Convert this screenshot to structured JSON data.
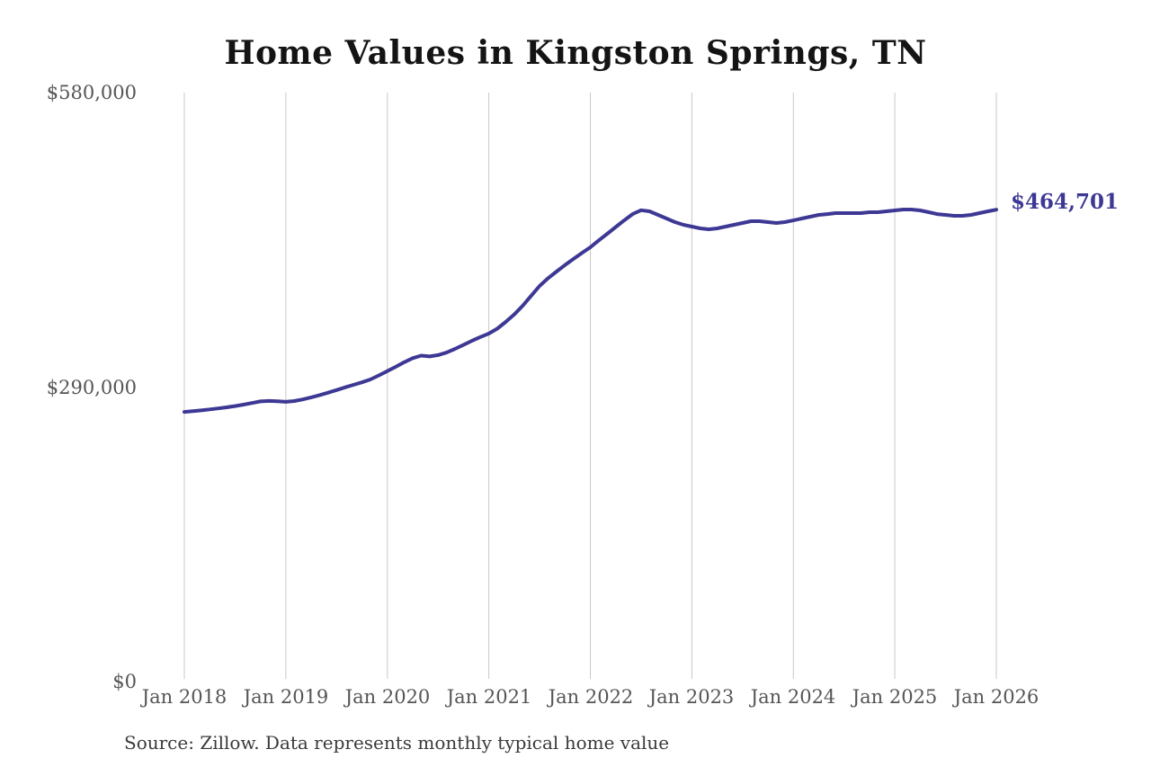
{
  "title": "Home Values in Kingston Springs, TN",
  "source_note": "Source: Zillow. Data represents monthly typical home value",
  "colors": {
    "line": "#3d3894",
    "grid": "#c9c9c9",
    "axis_text": "#555555",
    "title_text": "#141414",
    "source_text": "#3a3a3a",
    "end_label_text": "#3d3894",
    "background": "#ffffff"
  },
  "chart_data": {
    "type": "line",
    "title": "Home Values in Kingston Springs, TN",
    "xlabel": "",
    "ylabel": "",
    "frequency": "monthly",
    "x_start": "Jan 2018",
    "x_end": "Jan 2026",
    "x_tick_labels": [
      "Jan 2018",
      "Jan 2019",
      "Jan 2020",
      "Jan 2021",
      "Jan 2022",
      "Jan 2023",
      "Jan 2024",
      "Jan 2025",
      "Jan 2026"
    ],
    "months_per_tick": 12,
    "y_ticks": [
      0,
      290000,
      580000
    ],
    "y_tick_labels": [
      "$0",
      "$290,000",
      "$580,000"
    ],
    "ylim": [
      0,
      580000
    ],
    "grid": "vertical-only",
    "legend": "none",
    "end_label": "$464,701",
    "last_value": 464701,
    "series": [
      {
        "name": "Monthly typical home value",
        "values": [
          265600,
          266300,
          267100,
          268000,
          269000,
          270100,
          271300,
          272700,
          274300,
          275900,
          276400,
          276000,
          275500,
          276300,
          277900,
          279900,
          282100,
          284500,
          287100,
          289700,
          292200,
          294700,
          297500,
          301500,
          305800,
          310000,
          314500,
          318500,
          321000,
          320200,
          321500,
          324000,
          327600,
          331500,
          335600,
          339300,
          342700,
          347600,
          354200,
          361500,
          370100,
          380000,
          389600,
          397200,
          403800,
          410200,
          416200,
          422000,
          427700,
          434500,
          441000,
          447600,
          454200,
          460400,
          464200,
          463100,
          459600,
          456000,
          452500,
          449800,
          448100,
          446300,
          445400,
          446300,
          448100,
          449800,
          451600,
          453400,
          453400,
          452500,
          451600,
          452500,
          454200,
          456000,
          457800,
          459600,
          460400,
          461300,
          461300,
          461300,
          461300,
          462200,
          462200,
          463100,
          464000,
          464900,
          464900,
          464000,
          462200,
          460400,
          459600,
          458700,
          458700,
          459600,
          461300,
          463100,
          464701
        ]
      }
    ]
  }
}
